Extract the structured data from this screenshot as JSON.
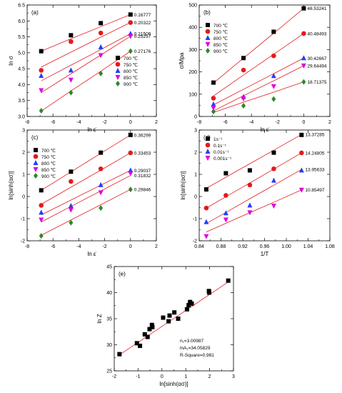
{
  "figure": {
    "panels": [
      "a",
      "b",
      "c",
      "d",
      "e"
    ]
  },
  "colors": {
    "black": "#000000",
    "red": "#e31a1c",
    "blue": "#1f3fff",
    "magenta": "#e000e0",
    "green": "#2a8a2a",
    "fit_line": "#e31a1c"
  },
  "chart_data": [
    {
      "id": "a",
      "type": "scatter",
      "panel_label": "(a)",
      "xlabel": "ln ε̇",
      "ylabel": "ln σ",
      "xlim": [
        -8,
        2
      ],
      "ylim": [
        3.0,
        6.5
      ],
      "xticks": [
        -8,
        -6,
        -4,
        -2,
        0,
        2
      ],
      "yticks": [
        3.0,
        3.5,
        4.0,
        4.5,
        5.0,
        5.5,
        6.0,
        6.5
      ],
      "ytick_labels": [
        "3.0",
        "3.5",
        "4.0",
        "4.5",
        "5.0",
        "5.5",
        "6.0",
        "6.5"
      ],
      "legend_position": "lower-right",
      "x": [
        -6.91,
        -4.61,
        -2.3,
        0.0
      ],
      "series": [
        {
          "name": "700 ℃",
          "color": "#000000",
          "marker": "square",
          "values": [
            5.05,
            5.55,
            5.93,
            6.2
          ],
          "fit": [
            5.05,
            5.44,
            5.82,
            6.2
          ],
          "slope_label": "0.16777"
        },
        {
          "name": "750 ℃",
          "color": "#e31a1c",
          "marker": "circle",
          "values": [
            4.45,
            5.35,
            5.62,
            5.95
          ],
          "fit": [
            4.55,
            5.02,
            5.49,
            5.95
          ],
          "slope_label": "0.20322"
        },
        {
          "name": "800 ℃",
          "color": "#1f3fff",
          "marker": "triangle-up",
          "values": [
            4.28,
            4.45,
            5.18,
            5.6
          ],
          "fit": [
            4.12,
            4.61,
            5.1,
            5.6
          ],
          "slope_label": "0.21509"
        },
        {
          "name": "850 ℃",
          "color": "#e000e0",
          "marker": "triangle-down",
          "values": [
            3.82,
            4.15,
            4.92,
            5.52
          ],
          "fit": [
            3.75,
            4.34,
            4.93,
            5.52
          ],
          "slope_label": "0.25257"
        },
        {
          "name": "900 ℃",
          "color": "#2a8a2a",
          "marker": "diamond",
          "values": [
            3.18,
            3.75,
            4.35,
            5.05
          ],
          "fit": [
            3.17,
            3.8,
            4.42,
            5.05
          ],
          "slope_label": "0.27176"
        }
      ]
    },
    {
      "id": "b",
      "type": "scatter",
      "panel_label": "(b)",
      "xlabel": "ln ε̇",
      "ylabel": "σ/Mpa",
      "xlim": [
        -8,
        2
      ],
      "ylim": [
        0,
        500
      ],
      "xticks": [
        -8,
        -6,
        -4,
        -2,
        0,
        2
      ],
      "yticks": [
        0,
        100,
        200,
        300,
        400,
        500
      ],
      "ytick_labels": [
        "0",
        "100",
        "200",
        "300",
        "400",
        "500"
      ],
      "legend_position": "upper-left",
      "x": [
        -6.91,
        -4.61,
        -2.3,
        0.0
      ],
      "series": [
        {
          "name": "700 ℃",
          "color": "#000000",
          "marker": "square",
          "values": [
            152,
            262,
            380,
            485
          ],
          "fit": [
            150,
            262,
            373,
            485
          ],
          "slope_label": "48.53241"
        },
        {
          "name": "750 ℃",
          "color": "#e31a1c",
          "marker": "circle",
          "values": [
            82,
            208,
            272,
            372
          ],
          "fit": [
            92,
            186,
            279,
            372
          ],
          "slope_label": "40.48493"
        },
        {
          "name": "800 ℃",
          "color": "#1f3fff",
          "marker": "triangle-up",
          "values": [
            55,
            88,
            182,
            262
          ],
          "fit": [
            52,
            122,
            192,
            262
          ],
          "slope_label": "30.42667"
        },
        {
          "name": "850 ℃",
          "color": "#e000e0",
          "marker": "triangle-down",
          "values": [
            38,
            80,
            135,
            228
          ],
          "fit": [
            25,
            93,
            160,
            228
          ],
          "slope_label": "29.64494"
        },
        {
          "name": "900 ℃",
          "color": "#2a8a2a",
          "marker": "diamond",
          "values": [
            22,
            48,
            78,
            155
          ],
          "fit": [
            18,
            64,
            109,
            155
          ],
          "slope_label": "18.71375"
        }
      ]
    },
    {
      "id": "c",
      "type": "scatter",
      "panel_label": "(c)",
      "xlabel": "ln ε̇",
      "ylabel": "ln[sinh(ασ)]",
      "xlim": [
        -8,
        2
      ],
      "ylim": [
        -2,
        3
      ],
      "xticks": [
        -8,
        -6,
        -4,
        -2,
        0,
        2
      ],
      "yticks": [
        -2,
        -1,
        0,
        1,
        2,
        3
      ],
      "ytick_labels": [
        "-2",
        "-1",
        "0",
        "1",
        "2",
        "3"
      ],
      "legend_position": "upper-left",
      "x": [
        -6.91,
        -4.61,
        -2.3,
        0.0
      ],
      "series": [
        {
          "name": "700 ℃",
          "color": "#000000",
          "marker": "square",
          "values": [
            0.28,
            1.12,
            1.98,
            2.78
          ],
          "fit": [
            0.28,
            1.11,
            1.95,
            2.78
          ],
          "slope_label": "0.36299"
        },
        {
          "name": "750 ℃",
          "color": "#e31a1c",
          "marker": "circle",
          "values": [
            -0.4,
            0.68,
            1.25,
            1.97
          ],
          "fit": [
            -0.35,
            0.42,
            1.19,
            1.97
          ],
          "slope_label": "0.33453"
        },
        {
          "name": "800 ℃",
          "color": "#1f3fff",
          "marker": "triangle-up",
          "values": [
            -0.72,
            -0.42,
            0.52,
            1.18
          ],
          "fit": [
            -0.83,
            -0.16,
            0.51,
            1.18
          ],
          "slope_label": "0.29037"
        },
        {
          "name": "850 ℃",
          "color": "#e000e0",
          "marker": "triangle-down",
          "values": [
            -1.05,
            -0.6,
            0.18,
            1.05
          ],
          "fit": [
            -1.15,
            -0.45,
            0.25,
            0.95
          ],
          "slope_label": "0.31832"
        },
        {
          "name": "900 ℃",
          "color": "#2a8a2a",
          "marker": "diamond",
          "values": [
            -1.78,
            -1.18,
            -0.52,
            0.32
          ],
          "fit": [
            -1.75,
            -1.06,
            -0.37,
            0.32
          ],
          "slope_label": "0.29846"
        }
      ]
    },
    {
      "id": "d",
      "type": "scatter",
      "panel_label": "(d)",
      "xlabel": "1/T",
      "ylabel": "ln[sinh(ασ)]",
      "xlim": [
        0.84,
        1.08
      ],
      "ylim": [
        -2,
        3
      ],
      "xticks": [
        0.84,
        0.88,
        0.92,
        0.96,
        1.0,
        1.04,
        1.08
      ],
      "xtick_labels": [
        "0.84",
        "0.88",
        "0.92",
        "0.96",
        "1.00",
        "1.04",
        "1.08"
      ],
      "yticks": [
        -2,
        -1,
        0,
        1,
        2,
        3
      ],
      "ytick_labels": [
        "-2",
        "-1",
        "0",
        "1",
        "2",
        "3"
      ],
      "legend_position": "upper-left",
      "x": [
        0.853,
        0.889,
        0.933,
        0.977,
        1.028
      ],
      "series": [
        {
          "name": "1s⁻¹",
          "color": "#000000",
          "marker": "square",
          "values": [
            0.32,
            1.05,
            1.18,
            1.98,
            2.78
          ],
          "fit": [
            0.37,
            0.87,
            1.48,
            2.09,
            2.8
          ],
          "slope_label": "13.37285"
        },
        {
          "name": "0.1s⁻¹",
          "color": "#e31a1c",
          "marker": "circle",
          "values": [
            -0.52,
            0.05,
            0.52,
            1.25,
            1.97
          ],
          "fit": [
            -0.52,
            -0.01,
            0.61,
            1.24,
            1.97
          ],
          "slope_label": "14.24805"
        },
        {
          "name": "0.01s⁻¹",
          "color": "#1f3fff",
          "marker": "triangle-up",
          "values": [
            -1.15,
            -0.75,
            -0.4,
            0.72,
            1.18
          ],
          "fit": [
            -1.22,
            -0.72,
            -0.1,
            0.51,
            1.22
          ],
          "slope_label": "13.95633"
        },
        {
          "name": "0.001s⁻¹",
          "color": "#e000e0",
          "marker": "triangle-down",
          "values": [
            -1.8,
            -1.05,
            -0.72,
            -0.42,
            0.3
          ],
          "fit": [
            -1.6,
            -1.21,
            -0.73,
            -0.26,
            0.3
          ],
          "slope_label": "10.85497"
        }
      ]
    },
    {
      "id": "e",
      "type": "scatter",
      "panel_label": "(e)",
      "xlabel": "ln[sinh(ασ)]",
      "ylabel": "ln Z",
      "xlim": [
        -2,
        3
      ],
      "ylim": [
        25,
        45
      ],
      "xticks": [
        -2,
        -1,
        0,
        1,
        2,
        3
      ],
      "yticks": [
        25,
        30,
        35,
        40,
        45
      ],
      "ytick_labels": [
        "25",
        "30",
        "35",
        "40",
        "45"
      ],
      "points": {
        "x": [
          -1.78,
          -1.05,
          -0.92,
          -0.72,
          -0.6,
          -0.52,
          -0.42,
          -0.4,
          0.05,
          0.28,
          0.32,
          0.52,
          0.68,
          1.05,
          1.12,
          1.18,
          1.25,
          1.98,
          1.97,
          2.78
        ],
        "y": [
          28.2,
          30.3,
          29.8,
          32.0,
          31.5,
          33.0,
          33.8,
          33.4,
          35.2,
          34.5,
          35.6,
          36.2,
          35.0,
          36.8,
          37.6,
          38.2,
          37.9,
          40.0,
          40.3,
          42.3
        ]
      },
      "fit": {
        "x": [
          -1.8,
          2.8
        ],
        "y": [
          28.0,
          42.1
        ]
      },
      "annotations": [
        "n₁=3.00987",
        "lnA₁=34.05829",
        "R-Square=0.981"
      ]
    }
  ]
}
